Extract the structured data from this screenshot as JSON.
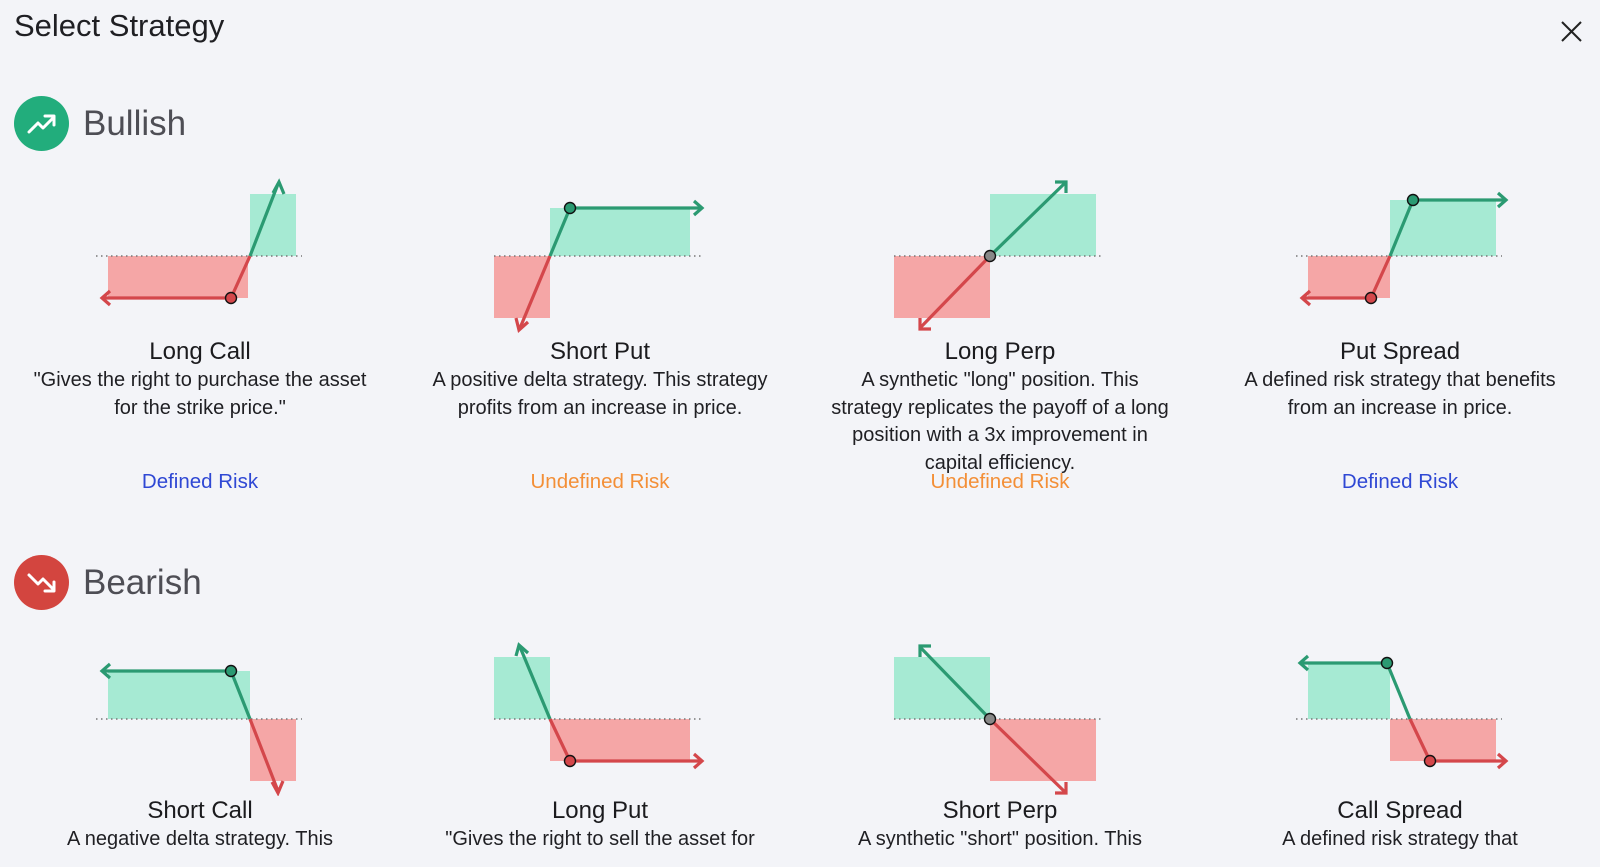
{
  "modal": {
    "title": "Select Strategy"
  },
  "sections": {
    "bullish": {
      "title": "Bullish",
      "icon": "trend-up-icon",
      "color": "#22ad7c",
      "cards": [
        {
          "title": "Long Call",
          "description": "\"Gives the right to purchase the asset for the strike price.\"",
          "risk": "Defined Risk",
          "risk_type": "defined",
          "chart": "long-call-payoff"
        },
        {
          "title": "Short Put",
          "description": "A positive delta strategy. This strategy profits from an increase in price.",
          "risk": "Undefined Risk",
          "risk_type": "undefined",
          "chart": "short-put-payoff"
        },
        {
          "title": "Long Perp",
          "description": "A synthetic \"long\" position. This strategy replicates the payoff of a long position with a 3x improvement in capital efficiency.",
          "risk": "Undefined Risk",
          "risk_type": "undefined",
          "chart": "long-perp-payoff"
        },
        {
          "title": "Put Spread",
          "description": "A defined risk strategy that benefits from an increase in price.",
          "risk": "Defined Risk",
          "risk_type": "defined",
          "chart": "put-spread-payoff"
        }
      ]
    },
    "bearish": {
      "title": "Bearish",
      "icon": "trend-down-icon",
      "color": "#d3453f",
      "cards": [
        {
          "title": "Short Call",
          "description": "A negative delta strategy. This",
          "chart": "short-call-payoff"
        },
        {
          "title": "Long Put",
          "description": "\"Gives the right to sell the asset for",
          "chart": "long-put-payoff"
        },
        {
          "title": "Short Perp",
          "description": "A synthetic \"short\" position. This",
          "chart": "short-perp-payoff"
        },
        {
          "title": "Call Spread",
          "description": "A defined risk strategy that",
          "chart": "call-spread-payoff"
        }
      ]
    }
  },
  "colors": {
    "profit_fill": "#a6ead3",
    "loss_fill": "#f5a6a6",
    "profit_line": "#2b9a72",
    "loss_line": "#d4474b",
    "defined_risk": "#2f48d4",
    "undefined_risk": "#f38f37"
  }
}
